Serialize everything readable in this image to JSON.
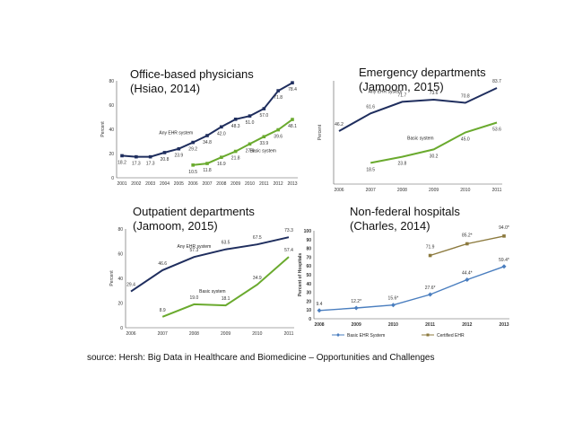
{
  "source": "source: Hersh: Big Data in Healthcare and Biomedicine – Opportunities and Challenges",
  "colors": {
    "navy": "#1f2e5e",
    "green": "#6aaa2e",
    "blue": "#4a7ebf",
    "olive": "#8c7a3e"
  },
  "chart_data": [
    {
      "type": "line",
      "title": [
        "Office-based physicians",
        "(Hsiao, 2014)"
      ],
      "ylabel": "Percent",
      "x": [
        "2001",
        "2002",
        "2003",
        "2004",
        "2005",
        "2006",
        "2007",
        "2008",
        "2009",
        "2010",
        "2011",
        "2012",
        "2013"
      ],
      "ylim": [
        0,
        80
      ],
      "yticks": [
        0,
        20,
        40,
        60,
        80
      ],
      "series": [
        {
          "name": "Any EHR system",
          "color": "#1f2e5e",
          "marker": "square",
          "values": [
            18.2,
            17.3,
            17.3,
            20.8,
            23.9,
            29.2,
            34.8,
            42.0,
            48.3,
            51.0,
            57.0,
            71.8,
            78.4
          ],
          "labels": [
            "18.2",
            "17.3",
            "17.3",
            "20.8",
            "23.9",
            "29.2",
            "34.8",
            "42.0",
            "48.3",
            "51.0",
            "57.0",
            "71.8",
            "78.4"
          ]
        },
        {
          "name": "Basic system",
          "color": "#6aaa2e",
          "marker": "square",
          "values": [
            null,
            null,
            null,
            null,
            null,
            10.5,
            11.8,
            16.9,
            21.8,
            27.9,
            33.9,
            39.6,
            48.1
          ],
          "labels": [
            "",
            "",
            "",
            "",
            "",
            "10.5",
            "11.8",
            "16.9",
            "21.8",
            "27.9",
            "33.9",
            "39.6",
            "48.1"
          ]
        }
      ]
    },
    {
      "type": "line",
      "title": [
        "Emergency departments",
        "(Jamoom, 2015)"
      ],
      "ylabel": "Percent",
      "x": [
        "2006",
        "2007",
        "2008",
        "2009",
        "2010",
        "2011"
      ],
      "ylim": [
        0,
        90
      ],
      "series": [
        {
          "name": "Any EHR system",
          "color": "#1f2e5e",
          "values": [
            46.2,
            61.6,
            71.7,
            73.6,
            70.8,
            83.7
          ],
          "labels": [
            "46.2",
            "61.6",
            "71.7",
            "73.6",
            "70.8",
            "83.7"
          ]
        },
        {
          "name": "Basic system",
          "color": "#6aaa2e",
          "values": [
            null,
            18.5,
            23.8,
            30.2,
            45.0,
            53.6
          ],
          "labels": [
            "",
            "18.5",
            "23.8",
            "30.2",
            "45.0",
            "53.6"
          ]
        }
      ]
    },
    {
      "type": "line",
      "title": [
        "Outpatient departments",
        "(Jamoom, 2015)"
      ],
      "ylabel": "Percent",
      "x": [
        "2006",
        "2007",
        "2008",
        "2009",
        "2010",
        "2011"
      ],
      "ylim": [
        0,
        80
      ],
      "yticks": [
        0,
        20,
        40,
        60,
        80
      ],
      "series": [
        {
          "name": "Any EHR system",
          "color": "#1f2e5e",
          "values": [
            29.4,
            46.6,
            57.3,
            63.5,
            67.5,
            73.3
          ],
          "labels": [
            "29.4",
            "46.6",
            "57.3",
            "63.5",
            "67.5",
            "73.3"
          ]
        },
        {
          "name": "Basic system",
          "color": "#6aaa2e",
          "values": [
            null,
            8.9,
            19.0,
            18.1,
            34.9,
            57.4
          ],
          "labels": [
            "",
            "8.9",
            "19.0",
            "18.1",
            "34.9",
            "57.4"
          ]
        }
      ]
    },
    {
      "type": "line",
      "title": [
        "Non-federal hospitals",
        "(Charles, 2014)"
      ],
      "ylabel": "Percent of Hospitals",
      "x": [
        "2008",
        "2009",
        "2010",
        "2011",
        "2012",
        "2013"
      ],
      "ylim": [
        0,
        100
      ],
      "yticks": [
        0,
        10,
        20,
        30,
        40,
        50,
        60,
        70,
        80,
        90,
        100
      ],
      "legend": "bottom",
      "series": [
        {
          "name": "Basic EHR System",
          "color": "#4a7ebf",
          "marker": "diamond",
          "values": [
            9.4,
            12.2,
            15.6,
            27.6,
            44.4,
            59.4
          ],
          "labels": [
            "9.4",
            "12.2*",
            "15.6*",
            "27.6*",
            "44.4*",
            "59.4*"
          ]
        },
        {
          "name": "Certified EHR",
          "color": "#8c7a3e",
          "marker": "square",
          "values": [
            null,
            null,
            null,
            71.9,
            85.2,
            94.0
          ],
          "labels": [
            "",
            "",
            "",
            "71.9",
            "85.2*",
            "94.0*"
          ]
        }
      ]
    }
  ]
}
